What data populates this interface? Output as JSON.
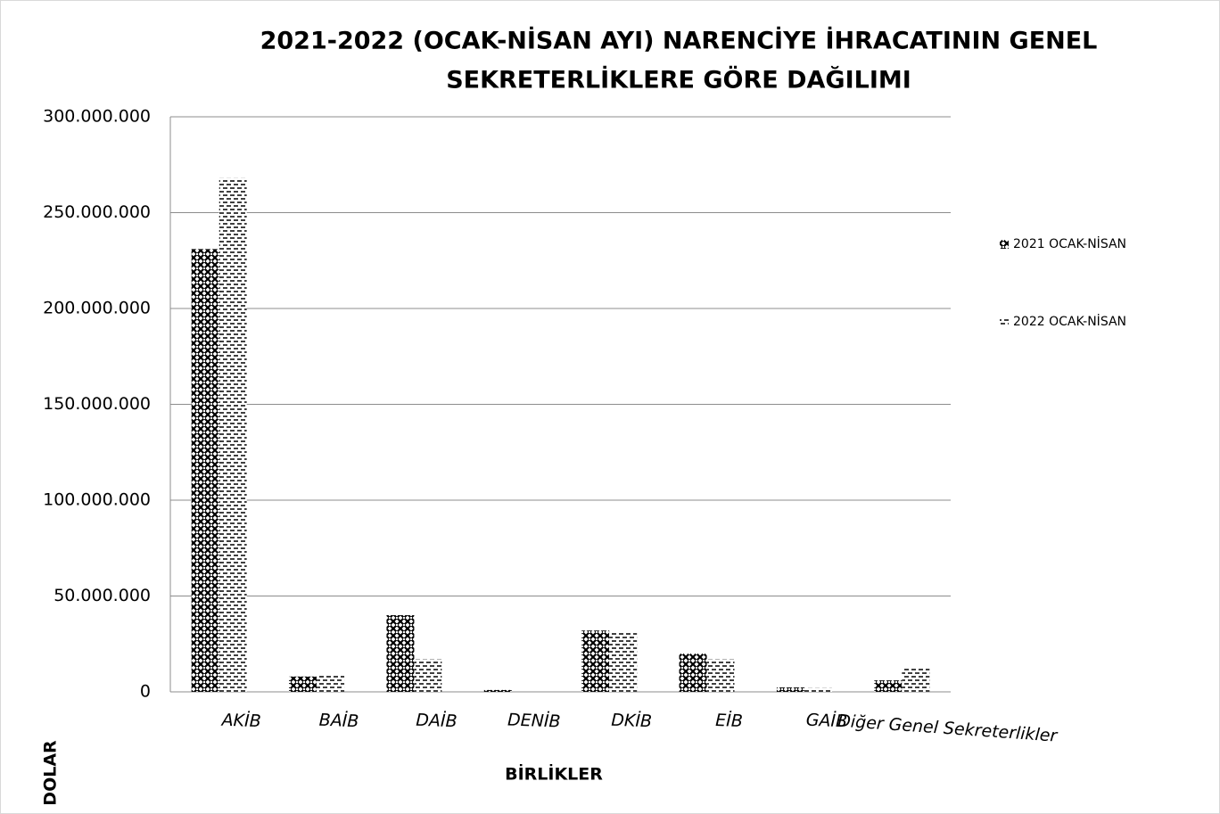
{
  "chart_data": {
    "type": "bar",
    "title": [
      "2021-2022 (OCAK-NİSAN AYI) NARENCİYE İHRACATININ GENEL",
      "SEKRETERLİKLERE  GÖRE DAĞILIMI"
    ],
    "x_label": "BİRLİKLER",
    "y_label": "DOLAR",
    "categories": [
      "AKİB",
      "BAİB",
      "DAİB",
      "DENİB",
      "DKİB",
      "EİB",
      "GAİB",
      "Diğer Genel Sekreterlikler"
    ],
    "series": [
      {
        "name": "2021 OCAK-NİSAN",
        "color": "#000000",
        "values": [
          231000000,
          8000000,
          40000000,
          1000000,
          32000000,
          20000000,
          2300000,
          6000000
        ]
      },
      {
        "name": "2022 OCAK-NİSAN",
        "color": "#000000",
        "values": [
          268000000,
          9000000,
          17000000,
          0,
          31000000,
          17000000,
          2000000,
          13000000
        ]
      }
    ],
    "ylim": [
      0,
      300000000
    ],
    "yticks": [
      0,
      {
        "value": 50000000,
        "label": "50.000.000"
      },
      {
        "value": 100000000,
        "label": "100.000.000"
      },
      {
        "value": 150000000,
        "label": "150.000.000"
      },
      {
        "value": 200000000,
        "label": "200.000.000"
      },
      {
        "value": 250000000,
        "label": "250.000.000"
      },
      {
        "value": 300000000,
        "label": "300.000.000"
      }
    ],
    "grid": true,
    "legend": "right"
  }
}
